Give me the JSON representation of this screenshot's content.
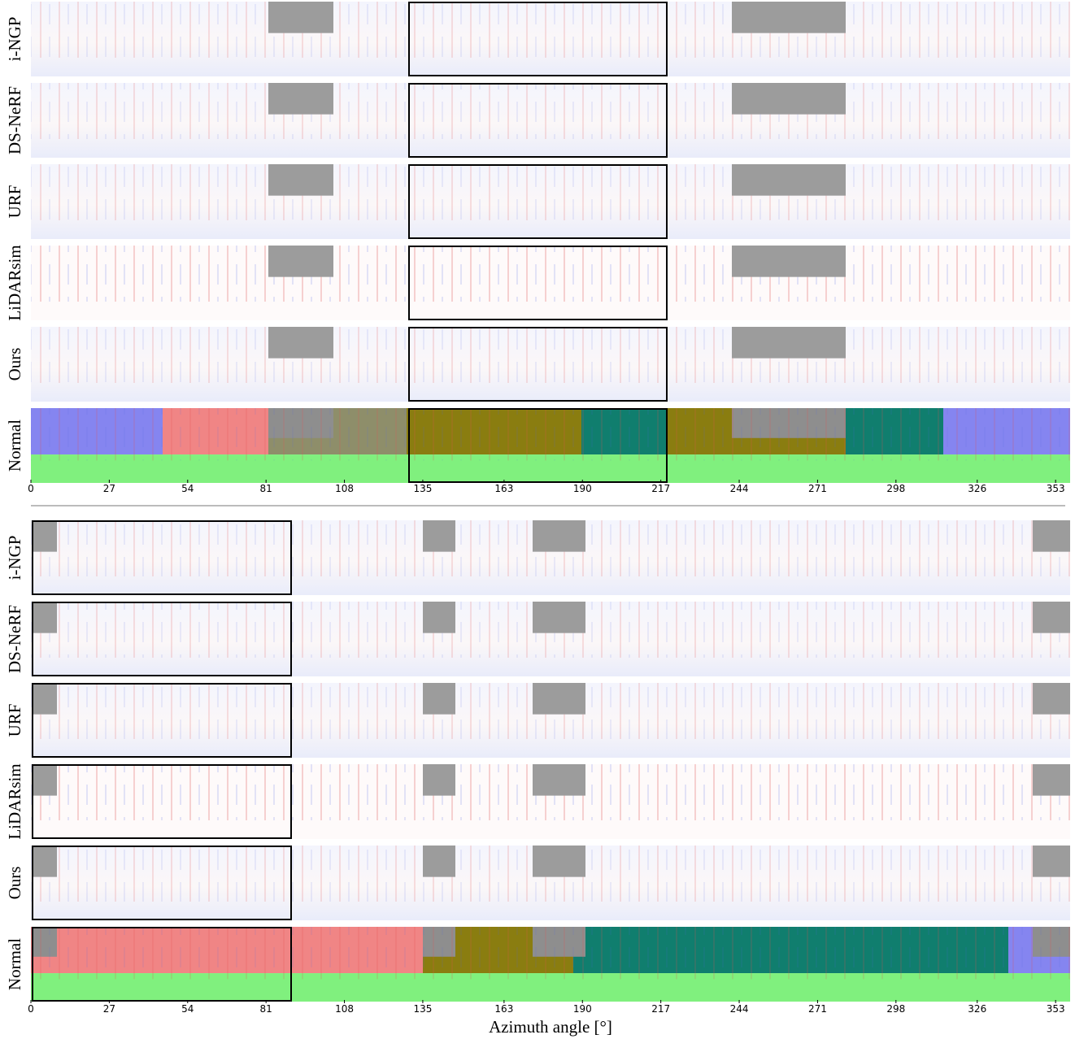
{
  "chart_data": [
    {
      "type": "image-grid",
      "row_labels": [
        "i-NGP",
        "DS-NeRF",
        "URF",
        "LiDARsim",
        "Ours",
        "Normal"
      ],
      "xlim": [
        0,
        358
      ],
      "xticks": [
        0,
        27,
        54,
        81,
        108,
        135,
        163,
        190,
        217,
        244,
        271,
        298,
        326,
        353
      ]
    },
    {
      "type": "image-grid",
      "row_labels": [
        "i-NGP",
        "DS-NeRF",
        "URF",
        "LiDARsim",
        "Ours",
        "Normal"
      ],
      "xlim": [
        0,
        358
      ],
      "xticks": [
        0,
        27,
        54,
        81,
        108,
        135,
        163,
        190,
        217,
        244,
        271,
        298,
        326,
        353
      ],
      "x_label": "Azimuth angle [°]"
    }
  ]
}
